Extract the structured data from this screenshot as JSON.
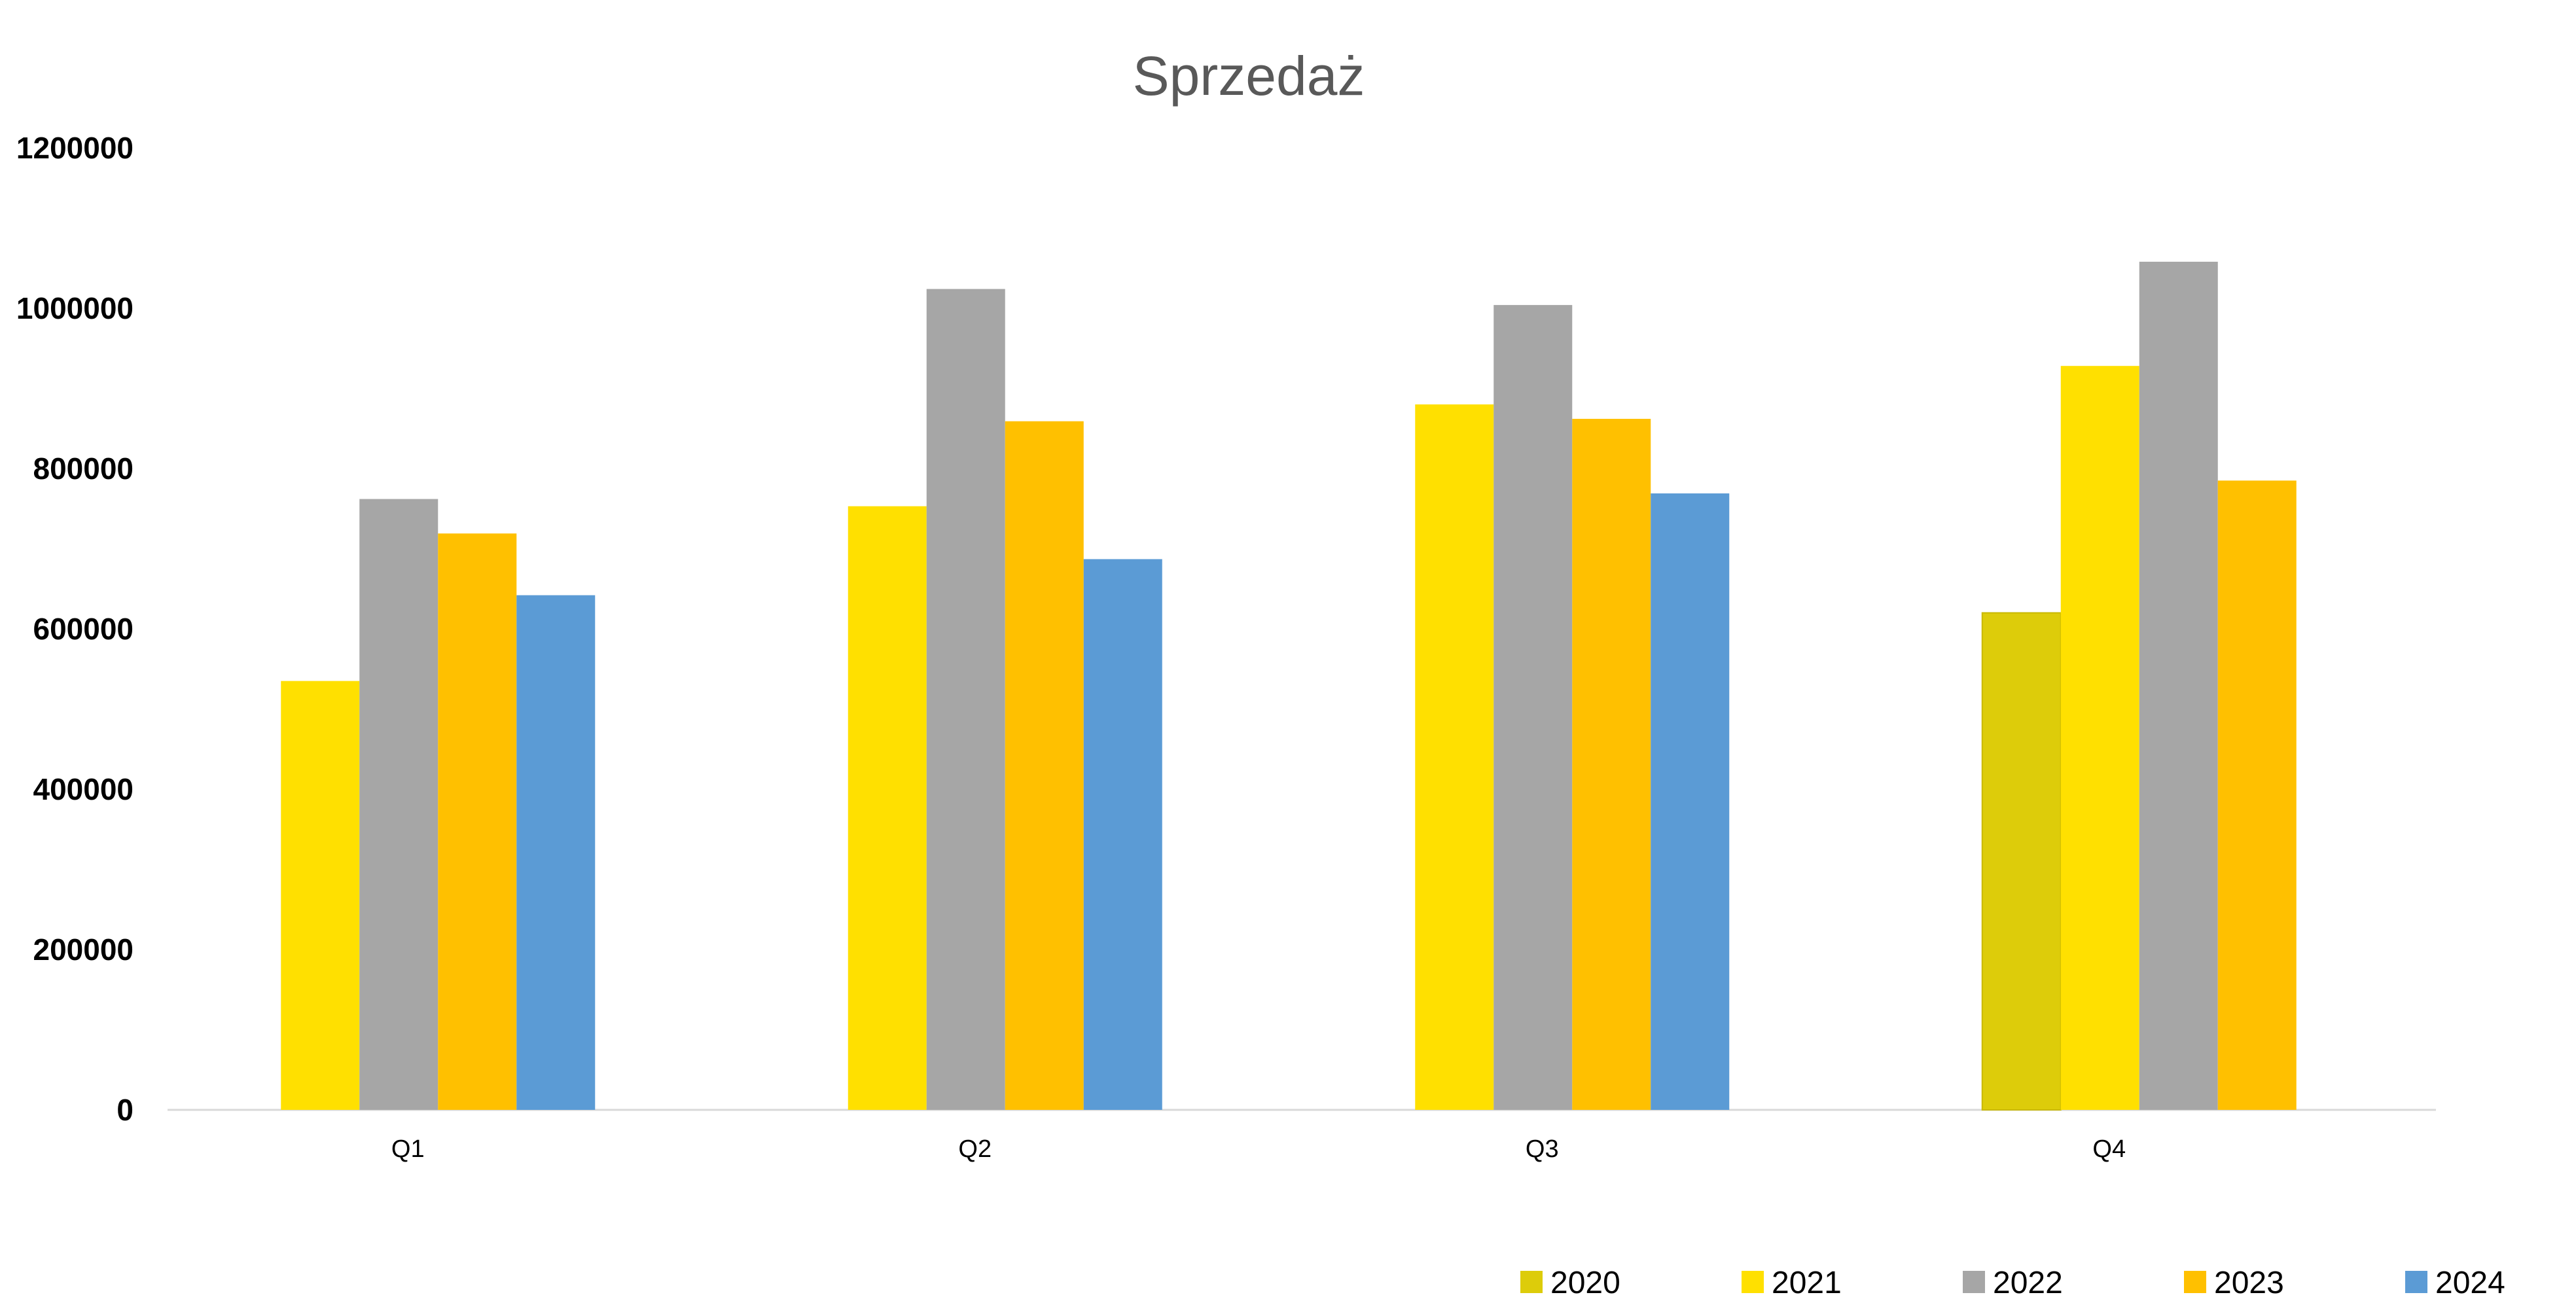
{
  "chart_data": {
    "type": "bar",
    "title": "Sprzedaż",
    "xlabel": "",
    "ylabel": "",
    "categories": [
      "Q1",
      "Q2",
      "Q3",
      "Q4"
    ],
    "series": [
      {
        "name": "2020",
        "color": "#DDCC0A",
        "values": [
          null,
          null,
          null,
          620000
        ]
      },
      {
        "name": "2021",
        "color": "#FFE000",
        "values": [
          535000,
          753000,
          880000,
          928000
        ]
      },
      {
        "name": "2022",
        "color": "#A6A6A6",
        "values": [
          762000,
          1024000,
          1004000,
          1058000
        ]
      },
      {
        "name": "2023",
        "color": "#FFC000",
        "values": [
          719000,
          859000,
          862000,
          785000
        ]
      },
      {
        "name": "2024",
        "color": "#5B9BD5",
        "values": [
          642000,
          687000,
          769000,
          null
        ]
      }
    ],
    "y_ticks": [
      "0",
      "200000",
      "400000",
      "600000",
      "800000",
      "1000000",
      "1200000"
    ],
    "ylim": [
      0,
      1200000
    ],
    "grid": false,
    "legend": "bottom-right"
  }
}
